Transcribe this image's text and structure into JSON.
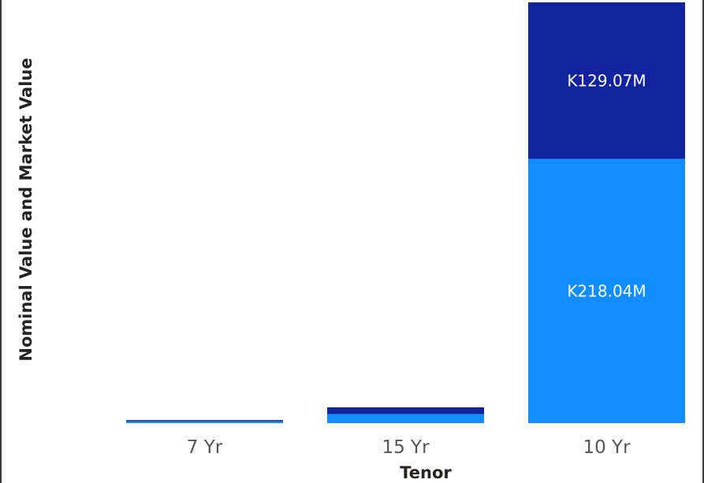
{
  "chart_data": {
    "type": "bar",
    "stacked": true,
    "title": "",
    "xlabel": "Tenor",
    "ylabel": "Nominal Value and Market Value",
    "categories": [
      "7 Yr",
      "15 Yr",
      "10 Yr"
    ],
    "series": [
      {
        "values": [
          1.5,
          7.5,
          218.04
        ],
        "color": "#118dff",
        "data_labels": [
          "",
          "",
          "K218.04M"
        ]
      },
      {
        "values": [
          1.0,
          5.5,
          129.07
        ],
        "color": "#12239e",
        "data_labels": [
          "",
          "",
          "K129.07M"
        ]
      }
    ],
    "ylim": [
      0,
      347.11
    ],
    "grid": false,
    "legend": "none"
  }
}
